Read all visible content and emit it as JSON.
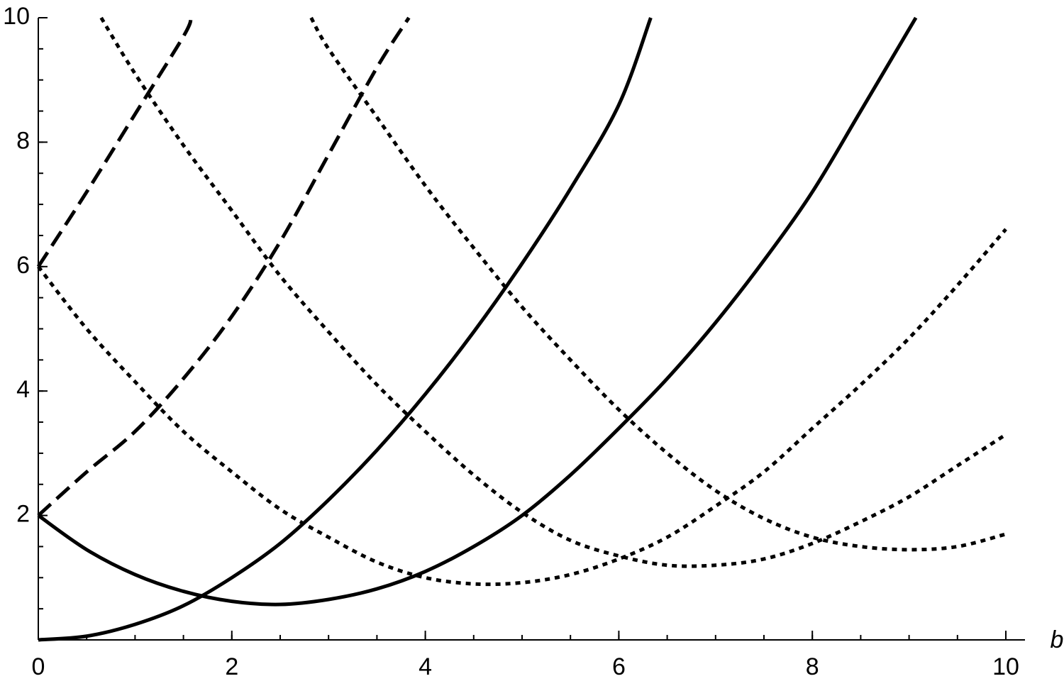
{
  "chart_data": {
    "type": "line",
    "xlabel": "b",
    "xlim": [
      0,
      10
    ],
    "ylim": [
      0,
      10
    ],
    "xticks": [
      0,
      2,
      4,
      6,
      8,
      10
    ],
    "yticks": [
      2,
      4,
      6,
      8,
      10
    ],
    "grid": false,
    "series": [
      {
        "color": "#000000",
        "dash": "solid",
        "x": [
          0,
          0.5,
          1,
          1.5,
          2,
          2.5,
          3,
          3.5,
          4,
          4.5,
          5,
          5.5,
          6,
          6.5,
          7,
          7.5,
          8,
          8.5,
          9.07
        ],
        "values": [
          2,
          1.45,
          1.05,
          0.78,
          0.62,
          0.57,
          0.65,
          0.82,
          1.1,
          1.5,
          2.0,
          2.65,
          3.4,
          4.2,
          5.1,
          6.1,
          7.2,
          8.5,
          10
        ]
      },
      {
        "color": "#000000",
        "dash": "solid",
        "x": [
          0,
          0.5,
          1,
          1.5,
          2,
          2.5,
          3,
          3.5,
          4,
          4.5,
          5,
          5.5,
          6,
          6.33
        ],
        "values": [
          0,
          0.06,
          0.25,
          0.55,
          1.0,
          1.55,
          2.25,
          3.05,
          3.95,
          4.95,
          6.05,
          7.25,
          8.6,
          10
        ]
      },
      {
        "color": "#000000",
        "dash": "dashed",
        "x": [
          0,
          0.5,
          1,
          1.5,
          2,
          2.5,
          3,
          3.5,
          3.83
        ],
        "values": [
          2,
          2.7,
          3.35,
          4.2,
          5.2,
          6.4,
          7.8,
          9.2,
          10
        ]
      },
      {
        "color": "#000000",
        "dash": "dashed",
        "x": [
          0,
          0.5,
          1,
          1.5,
          1.58
        ],
        "values": [
          6,
          7.2,
          8.45,
          9.7,
          10
        ]
      },
      {
        "color": "#000000",
        "dash": "dotted",
        "x": [
          0,
          0.5,
          1,
          1.5,
          2,
          2.5,
          3,
          3.5,
          4,
          4.5,
          5,
          5.5,
          6,
          6.5,
          7,
          7.5,
          8,
          8.5,
          9,
          9.5,
          10
        ],
        "values": [
          6,
          5.0,
          4.15,
          3.35,
          2.7,
          2.1,
          1.65,
          1.25,
          1.0,
          0.9,
          0.92,
          1.05,
          1.3,
          1.65,
          2.15,
          2.7,
          3.4,
          4.1,
          4.85,
          5.7,
          6.6
        ]
      },
      {
        "color": "#000000",
        "dash": "dotted",
        "x": [
          0.65,
          1,
          1.5,
          2,
          2.5,
          3,
          3.5,
          4,
          4.5,
          5,
          5.5,
          6,
          6.5,
          7,
          7.5,
          8,
          8.5,
          9,
          9.5,
          10
        ],
        "values": [
          10,
          9.1,
          7.95,
          6.9,
          5.85,
          4.95,
          4.1,
          3.35,
          2.65,
          2.05,
          1.6,
          1.35,
          1.2,
          1.2,
          1.3,
          1.55,
          1.9,
          2.3,
          2.8,
          3.3
        ]
      },
      {
        "color": "#000000",
        "dash": "dotted",
        "x": [
          2.82,
          3,
          3.5,
          4,
          4.5,
          5,
          5.5,
          6,
          6.5,
          7,
          7.5,
          8,
          8.5,
          9,
          9.5,
          10
        ],
        "values": [
          10,
          9.5,
          8.4,
          7.3,
          6.3,
          5.35,
          4.5,
          3.7,
          3.0,
          2.4,
          1.95,
          1.65,
          1.5,
          1.45,
          1.5,
          1.7
        ]
      }
    ]
  }
}
